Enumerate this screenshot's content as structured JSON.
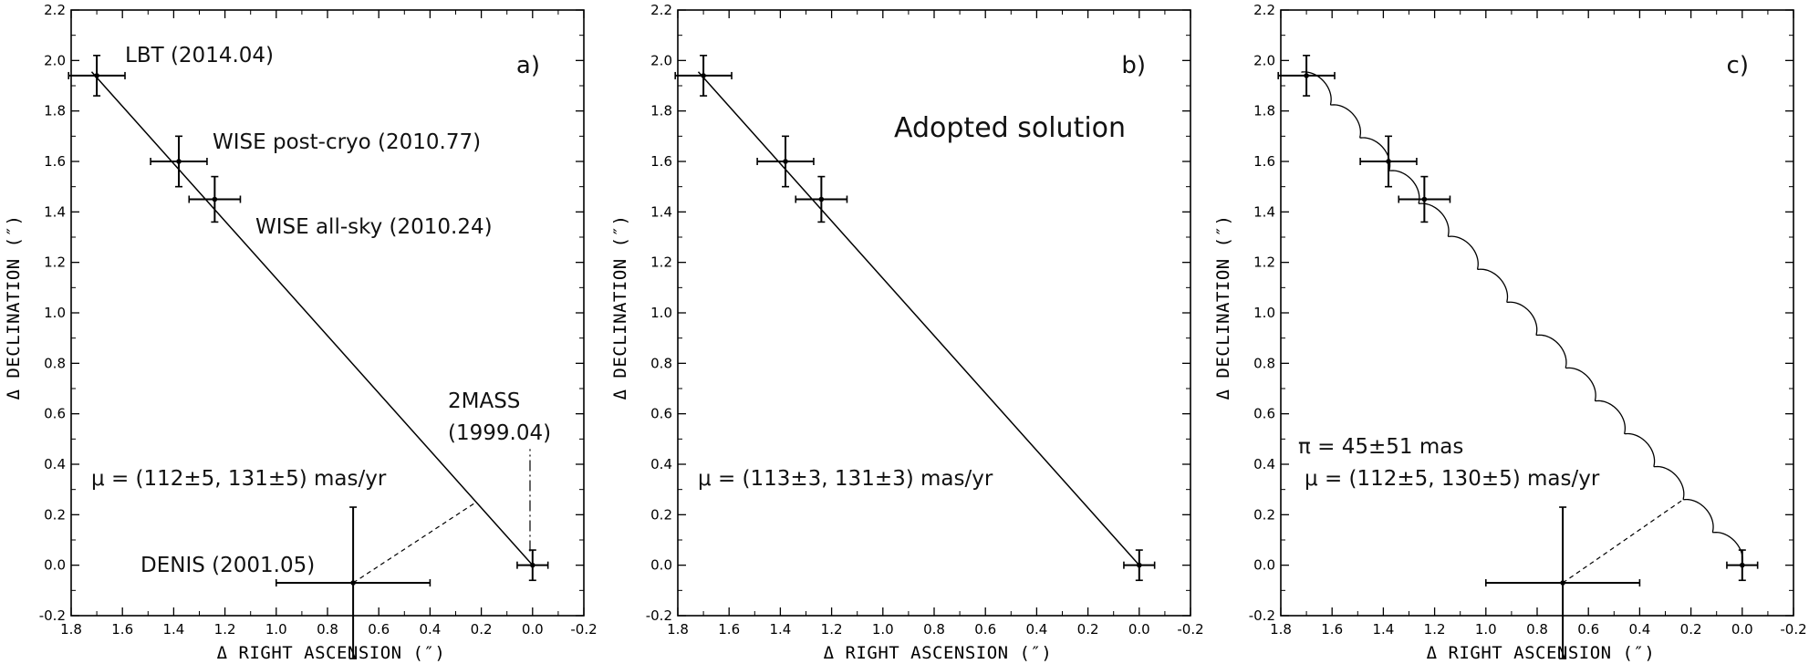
{
  "chart_data": [
    {
      "type": "scatter",
      "panel_label": "a)",
      "xlabel": "Δ RIGHT ASCENSION (″)",
      "ylabel": "Δ DECLINATION (″)",
      "xlim": [
        1.8,
        -0.2
      ],
      "ylim": [
        -0.2,
        2.2
      ],
      "xticks": [
        "1.8",
        "1.6",
        "1.4",
        "1.2",
        "1.0",
        "0.8",
        "0.6",
        "0.4",
        "0.2",
        "0.0",
        "-0.2"
      ],
      "yticks": [
        "-0.2",
        "0.0",
        "0.2",
        "0.4",
        "0.6",
        "0.8",
        "1.0",
        "1.2",
        "1.4",
        "1.6",
        "1.8",
        "2.0",
        "2.2"
      ],
      "points": [
        {
          "label": "LBT (2014.04)",
          "x": 1.7,
          "y": 1.94,
          "xerr": 0.11,
          "yerr": 0.08
        },
        {
          "label": "WISE post-cryo (2010.77)",
          "x": 1.38,
          "y": 1.6,
          "xerr": 0.11,
          "yerr": 0.1
        },
        {
          "label": "WISE all-sky (2010.24)",
          "x": 1.24,
          "y": 1.45,
          "xerr": 0.1,
          "yerr": 0.09
        },
        {
          "label": "DENIS (2001.05)",
          "x": 0.7,
          "y": -0.07,
          "xerr": 0.3,
          "yerr": 0.3
        },
        {
          "label": "2MASS (1999.04)",
          "x": 0.0,
          "y": 0.0,
          "xerr": 0.06,
          "yerr": 0.06
        }
      ],
      "annotations": [
        "LBT (2014.04)",
        "WISE post-cryo (2010.77)",
        "WISE all-sky (2010.24)",
        "2MASS",
        "(1999.04)",
        "DENIS (2001.05)",
        "μ = (112±5, 131±5) mas/yr"
      ],
      "fit_line": [
        [
          1.72,
          1.955
        ],
        [
          0.0,
          0.0
        ]
      ],
      "denis_link": [
        [
          0.7,
          -0.07
        ],
        [
          0.22,
          0.25
        ]
      ],
      "twomass_pointer": [
        [
          0.01,
          0.055
        ],
        [
          0.01,
          0.46
        ]
      ]
    },
    {
      "type": "scatter",
      "panel_label": "b)",
      "xlabel": "Δ RIGHT ASCENSION (″)",
      "ylabel": "Δ DECLINATION (″)",
      "xlim": [
        1.8,
        -0.2
      ],
      "ylim": [
        -0.2,
        2.2
      ],
      "xticks": [
        "1.8",
        "1.6",
        "1.4",
        "1.2",
        "1.0",
        "0.8",
        "0.6",
        "0.4",
        "0.2",
        "0.0",
        "-0.2"
      ],
      "yticks": [
        "-0.2",
        "0.0",
        "0.2",
        "0.4",
        "0.6",
        "0.8",
        "1.0",
        "1.2",
        "1.4",
        "1.6",
        "1.8",
        "2.0",
        "2.2"
      ],
      "points": [
        {
          "x": 1.7,
          "y": 1.94,
          "xerr": 0.11,
          "yerr": 0.08
        },
        {
          "x": 1.38,
          "y": 1.6,
          "xerr": 0.11,
          "yerr": 0.1
        },
        {
          "x": 1.24,
          "y": 1.45,
          "xerr": 0.1,
          "yerr": 0.09
        },
        {
          "x": 0.0,
          "y": 0.0,
          "xerr": 0.06,
          "yerr": 0.06
        }
      ],
      "annotations": [
        "Adopted solution",
        "μ = (113±3, 131±3) mas/yr"
      ],
      "fit_line": [
        [
          1.72,
          1.955
        ],
        [
          0.0,
          0.0
        ]
      ]
    },
    {
      "type": "scatter",
      "panel_label": "c)",
      "xlabel": "Δ RIGHT ASCENSION (″)",
      "ylabel": "Δ DECLINATION (″)",
      "xlim": [
        1.8,
        -0.2
      ],
      "ylim": [
        -0.2,
        2.2
      ],
      "xticks": [
        "1.8",
        "1.6",
        "1.4",
        "1.2",
        "1.0",
        "0.8",
        "0.6",
        "0.4",
        "0.2",
        "0.0",
        "-0.2"
      ],
      "yticks": [
        "-0.2",
        "0.0",
        "0.2",
        "0.4",
        "0.6",
        "0.8",
        "1.0",
        "1.2",
        "1.4",
        "1.6",
        "1.8",
        "2.0",
        "2.2"
      ],
      "points": [
        {
          "x": 1.7,
          "y": 1.94,
          "xerr": 0.11,
          "yerr": 0.08
        },
        {
          "x": 1.38,
          "y": 1.6,
          "xerr": 0.11,
          "yerr": 0.1
        },
        {
          "x": 1.24,
          "y": 1.45,
          "xerr": 0.1,
          "yerr": 0.09
        },
        {
          "x": 0.7,
          "y": -0.07,
          "xerr": 0.3,
          "yerr": 0.3
        },
        {
          "x": 0.0,
          "y": 0.0,
          "xerr": 0.06,
          "yerr": 0.06
        }
      ],
      "annotations": [
        "π = 45±51 mas",
        "μ = (112±5, 130±5) mas/yr"
      ],
      "parallax_track": {
        "start": [
          1.72,
          1.955
        ],
        "end": [
          0.0,
          0.0
        ],
        "loops": 15,
        "amplitude_arcsec": 0.045
      },
      "denis_link": [
        [
          0.7,
          -0.07
        ],
        [
          0.23,
          0.26
        ]
      ]
    }
  ]
}
